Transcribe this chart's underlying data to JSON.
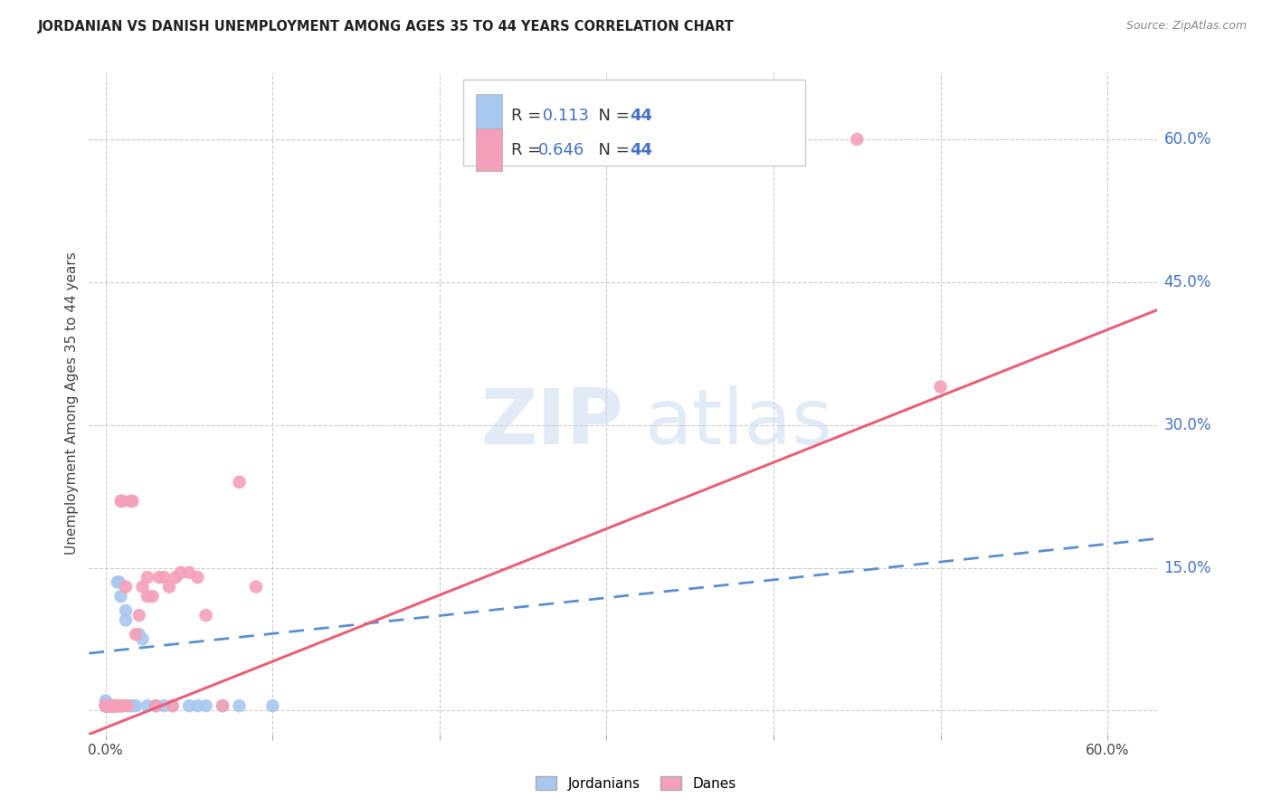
{
  "title": "JORDANIAN VS DANISH UNEMPLOYMENT AMONG AGES 35 TO 44 YEARS CORRELATION CHART",
  "source": "Source: ZipAtlas.com",
  "ylabel": "Unemployment Among Ages 35 to 44 years",
  "jordanians_R": "0.113",
  "jordanians_N": "44",
  "danes_R": "0.646",
  "danes_N": "44",
  "color_jordanians": "#A8C8F0",
  "color_danes": "#F4A0B8",
  "color_trend_jordanians": "#5B8FD0",
  "color_trend_danes": "#E8607A",
  "color_grid": "#CCCCCC",
  "color_right_labels": "#4472C4",
  "color_title": "#222222",
  "color_source": "#888888",
  "y_label_values": [
    0.15,
    0.3,
    0.45,
    0.6
  ],
  "y_label_texts": [
    "15.0%",
    "30.0%",
    "45.0%",
    "60.0%"
  ],
  "x_tick_values": [
    0.0,
    0.1,
    0.2,
    0.3,
    0.4,
    0.5,
    0.6
  ],
  "x_tick_texts": [
    "0.0%",
    "",
    "",
    "",
    "",
    "",
    "60.0%"
  ],
  "xlim": [
    -0.01,
    0.63
  ],
  "ylim": [
    -0.025,
    0.67
  ],
  "trend_j_x0": 0.0,
  "trend_j_y0": 0.062,
  "trend_j_x1": 0.6,
  "trend_j_y1": 0.175,
  "trend_d_x0": 0.0,
  "trend_d_y0": -0.018,
  "trend_d_x1": 0.6,
  "trend_d_y1": 0.4,
  "jordanians_x": [
    0.0,
    0.0,
    0.0,
    0.0,
    0.0,
    0.001,
    0.001,
    0.001,
    0.002,
    0.002,
    0.002,
    0.002,
    0.003,
    0.003,
    0.003,
    0.004,
    0.004,
    0.005,
    0.005,
    0.005,
    0.006,
    0.006,
    0.007,
    0.008,
    0.009,
    0.01,
    0.01,
    0.012,
    0.012,
    0.015,
    0.016,
    0.018,
    0.02,
    0.022,
    0.025,
    0.03,
    0.035,
    0.04,
    0.05,
    0.055,
    0.06,
    0.07,
    0.08,
    0.1
  ],
  "jordanians_y": [
    0.005,
    0.005,
    0.005,
    0.01,
    0.01,
    0.005,
    0.005,
    0.005,
    0.005,
    0.005,
    0.005,
    0.005,
    0.005,
    0.005,
    0.005,
    0.005,
    0.005,
    0.005,
    0.005,
    0.005,
    0.005,
    0.005,
    0.135,
    0.135,
    0.12,
    0.005,
    0.005,
    0.095,
    0.105,
    0.005,
    0.005,
    0.005,
    0.08,
    0.075,
    0.005,
    0.005,
    0.005,
    0.005,
    0.005,
    0.005,
    0.005,
    0.005,
    0.005,
    0.005
  ],
  "danes_x": [
    0.0,
    0.0,
    0.0,
    0.001,
    0.001,
    0.002,
    0.002,
    0.003,
    0.004,
    0.005,
    0.005,
    0.005,
    0.006,
    0.007,
    0.008,
    0.008,
    0.009,
    0.01,
    0.01,
    0.012,
    0.013,
    0.015,
    0.016,
    0.018,
    0.02,
    0.022,
    0.025,
    0.025,
    0.028,
    0.03,
    0.032,
    0.035,
    0.038,
    0.04,
    0.042,
    0.045,
    0.05,
    0.055,
    0.06,
    0.07,
    0.08,
    0.09,
    0.45,
    0.5
  ],
  "danes_y": [
    0.005,
    0.005,
    0.005,
    0.005,
    0.005,
    0.005,
    0.005,
    0.005,
    0.005,
    0.005,
    0.005,
    0.005,
    0.005,
    0.005,
    0.005,
    0.005,
    0.22,
    0.22,
    0.005,
    0.13,
    0.005,
    0.22,
    0.22,
    0.08,
    0.1,
    0.13,
    0.14,
    0.12,
    0.12,
    0.005,
    0.14,
    0.14,
    0.13,
    0.005,
    0.14,
    0.145,
    0.145,
    0.14,
    0.1,
    0.005,
    0.24,
    0.13,
    0.6,
    0.34
  ]
}
